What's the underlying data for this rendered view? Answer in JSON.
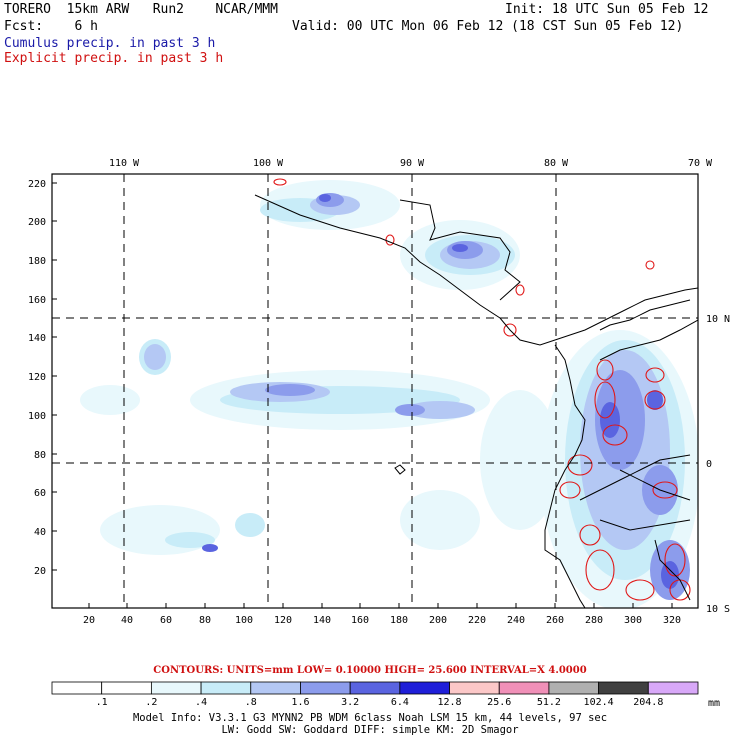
{
  "header": {
    "model": "TORERO  15km ARW   Run2    NCAR/MMM",
    "init": "Init: 18 UTC Sun 05 Feb 12",
    "fcst": "Fcst:    6 h",
    "valid": "Valid: 00 UTC Mon 06 Feb 12 (18 CST Sun 05 Feb 12)",
    "cumulus": "Cumulus precip. in past 3 h",
    "explicit": "Explicit precip. in past 3 h"
  },
  "map": {
    "top_lon_labels": [
      "110 W",
      "100 W",
      "90 W",
      "80 W",
      "70 W"
    ],
    "right_lat_labels": [
      "10 N",
      "0",
      "10 S"
    ],
    "left_ticks": [
      "220",
      "200",
      "180",
      "160",
      "140",
      "120",
      "100",
      "80",
      "60",
      "40",
      "20"
    ],
    "bottom_ticks": [
      "20",
      "40",
      "60",
      "80",
      "100",
      "120",
      "140",
      "160",
      "180",
      "200",
      "220",
      "240",
      "260",
      "280",
      "300",
      "320"
    ]
  },
  "contours_line": "CONTOURS:  UNITS=mm  LOW= 0.10000      HIGH=  25.600      INTERVAL=X  4.0000",
  "colorbar": {
    "unit": "mm",
    "labels": [
      ".1",
      ".2",
      ".4",
      ".8",
      "1.6",
      "3.2",
      "6.4",
      "12.8",
      "25.6",
      "51.2",
      "102.4",
      "204.8"
    ],
    "colors": [
      "#ffffff",
      "#ffffff",
      "#e8f8fc",
      "#c8ecf8",
      "#b4c8f4",
      "#8c9cec",
      "#5a64e0",
      "#1e1ed8",
      "#fcc8c8",
      "#f090b8",
      "#b0b0b0",
      "#404040",
      "#d8a8f8"
    ]
  },
  "model_info": {
    "line1": "Model Info: V3.3.1  G3       MYNN2 PB WDM 6class  Noah LSM  15 km,   44 levels,   97 sec",
    "line2": "LW: Godd SW: Goddard DIFF: simple KM: 2D Smagor"
  }
}
